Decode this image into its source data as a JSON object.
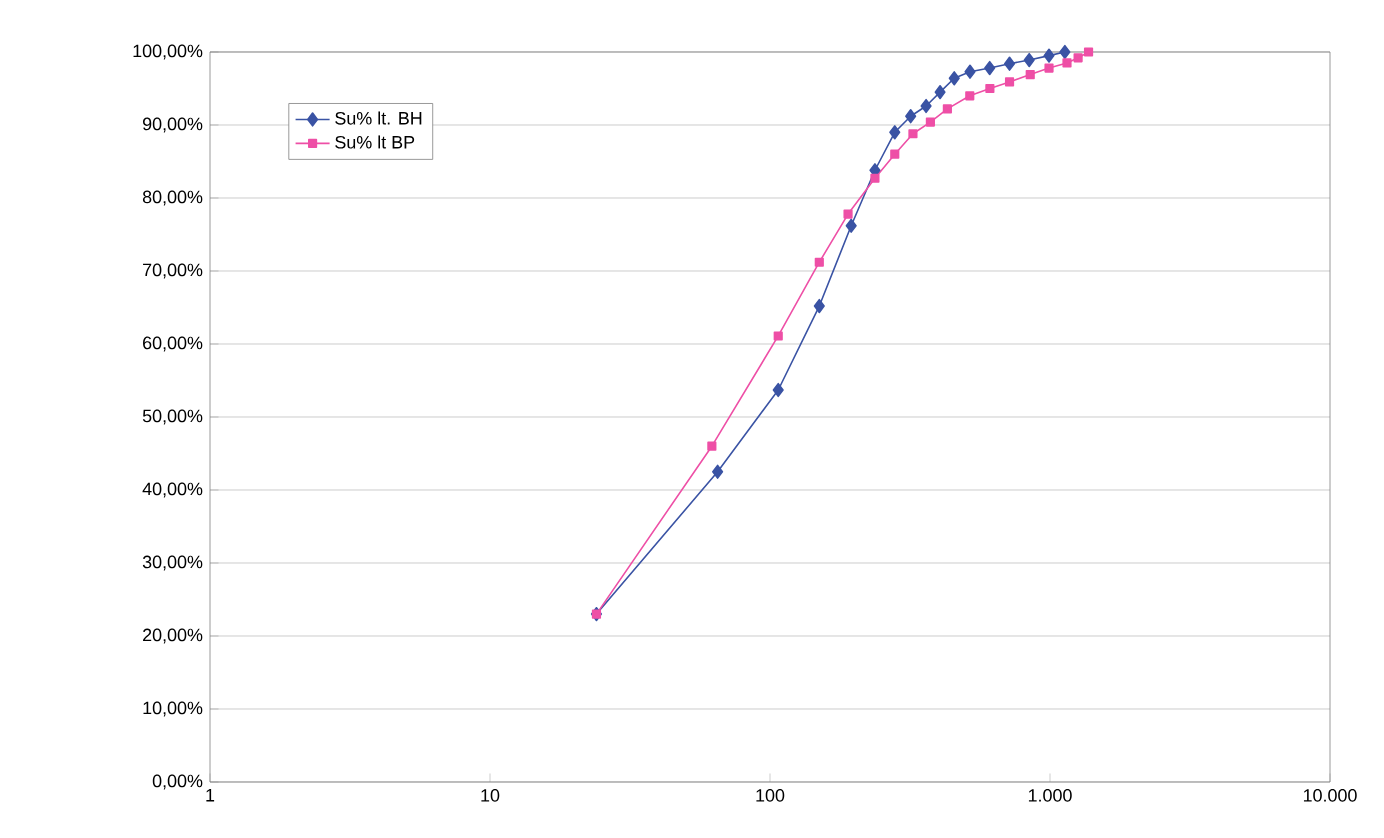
{
  "chart_data": {
    "type": "line",
    "log": "x",
    "grid": "y",
    "legend": "top left",
    "xlim": [
      1,
      10000
    ],
    "xticks": [
      1,
      10,
      100,
      {
        "value": 1000,
        "label": "1.000"
      },
      {
        "value": 10000,
        "label": "10.000"
      }
    ],
    "ylim": [
      0,
      100
    ],
    "yticks": [
      {
        "value": 0,
        "label": "0,00%"
      },
      {
        "value": 10,
        "label": "10,00%"
      },
      {
        "value": 20,
        "label": "20,00%"
      },
      {
        "value": 30,
        "label": "30,00%"
      },
      {
        "value": 40,
        "label": "40,00%"
      },
      {
        "value": 50,
        "label": "50,00%"
      },
      {
        "value": 60,
        "label": "60,00%"
      },
      {
        "value": 70,
        "label": "70,00%"
      },
      {
        "value": 80,
        "label": "80,00%"
      },
      {
        "value": 90,
        "label": "90,00%"
      },
      {
        "value": 100,
        "label": "100,00%"
      }
    ],
    "series": [
      {
        "name": "Su% lt. BH",
        "color": "#3a53a4",
        "marker": "diamond",
        "x": [
          24,
          65,
          107,
          150,
          195,
          237,
          279,
          318,
          361,
          405,
          455,
          518,
          609,
          717,
          843,
          992,
          1130
        ],
        "values": [
          23,
          42.5,
          53.7,
          65.2,
          76.2,
          83.8,
          89,
          91.2,
          92.6,
          94.5,
          96.4,
          97.3,
          97.8,
          98.4,
          98.9,
          99.5,
          100
        ]
      },
      {
        "name": "Su% lt BP",
        "color": "#ee4fa6",
        "marker": "square",
        "x": [
          24,
          62,
          107,
          150,
          190,
          237,
          279,
          324,
          374,
          430,
          517,
          610,
          717,
          850,
          992,
          1150,
          1260,
          1373
        ],
        "values": [
          23,
          46,
          61.1,
          71.2,
          77.8,
          82.7,
          86,
          88.8,
          90.4,
          92.2,
          94,
          95,
          95.9,
          96.9,
          97.8,
          98.5,
          99.2,
          100
        ]
      }
    ]
  }
}
